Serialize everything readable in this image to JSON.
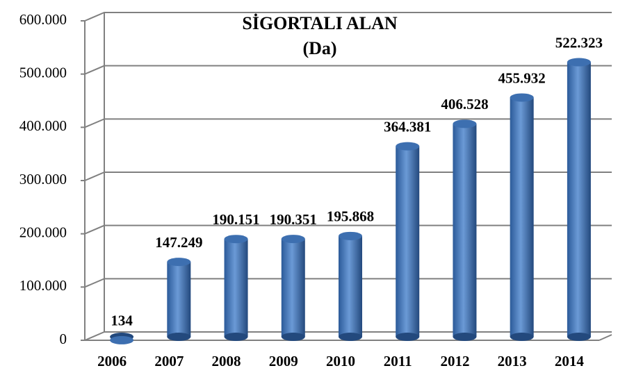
{
  "chart_data": {
    "type": "bar",
    "title": "SİGORTALI ALAN",
    "subtitle": "(Da)",
    "categories": [
      "2006",
      "2007",
      "2008",
      "2009",
      "2010",
      "2011",
      "2012",
      "2013",
      "2014"
    ],
    "values": [
      134,
      147249,
      190151,
      190351,
      195868,
      364381,
      406528,
      455932,
      522323
    ],
    "value_labels": [
      "134",
      "147.249",
      "190.151",
      "190.351",
      "195.868",
      "364.381",
      "406.528",
      "455.932",
      "522.323"
    ],
    "color": "#4a7ebb",
    "ylim": [
      0,
      600000
    ],
    "yticks": [
      0,
      {
        "value": 100000,
        "label": "100.000"
      },
      {
        "value": 200000,
        "label": "200.000"
      },
      {
        "value": 300000,
        "label": "300.000"
      },
      {
        "value": 400000,
        "label": "400.000"
      },
      {
        "value": 500000,
        "label": "500.000"
      },
      {
        "value": 600000,
        "label": "600.000"
      }
    ],
    "grid": true
  }
}
